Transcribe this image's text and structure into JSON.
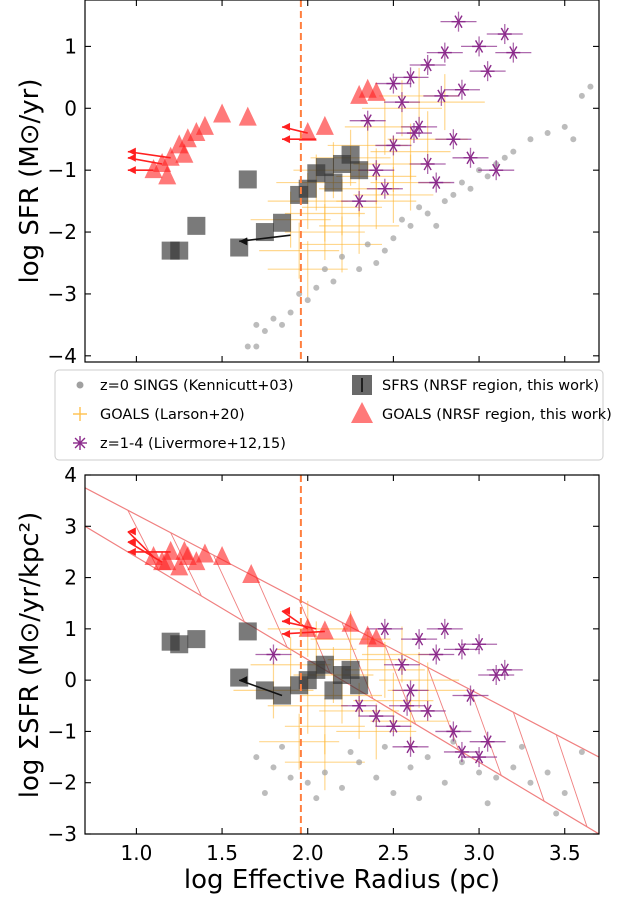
{
  "chart_data": [
    {
      "type": "scatter",
      "panel": "top",
      "xlabel": "",
      "ylabel": "log SFR (M⊙/yr)",
      "xlim": [
        0.7,
        3.7
      ],
      "ylim": [
        -4.1,
        1.75
      ],
      "yticks": [
        "−4",
        "−3",
        "−2",
        "−1",
        "0",
        "1"
      ],
      "ytick_values": [
        -4,
        -3,
        -2,
        -1,
        0,
        1
      ],
      "vline": 1.96,
      "series": {
        "sings": [
          [
            1.7,
            -3.5
          ],
          [
            1.75,
            -3.6
          ],
          [
            1.8,
            -3.4
          ],
          [
            1.85,
            -3.5
          ],
          [
            1.9,
            -3.3
          ],
          [
            1.95,
            -3.0
          ],
          [
            2.0,
            -3.1
          ],
          [
            2.05,
            -2.9
          ],
          [
            2.1,
            -2.6
          ],
          [
            2.15,
            -2.8
          ],
          [
            2.2,
            -2.4
          ],
          [
            2.3,
            -2.6
          ],
          [
            2.35,
            -2.2
          ],
          [
            2.4,
            -2.5
          ],
          [
            2.5,
            -2.1
          ],
          [
            2.6,
            -1.9
          ],
          [
            2.7,
            -1.7
          ],
          [
            2.8,
            -1.5
          ],
          [
            2.9,
            -1.2
          ],
          [
            3.0,
            -1.0
          ],
          [
            3.1,
            -0.9
          ],
          [
            3.2,
            -0.7
          ],
          [
            3.3,
            -0.5
          ],
          [
            3.4,
            -0.4
          ],
          [
            3.5,
            -0.3
          ],
          [
            3.55,
            -0.5
          ],
          [
            3.6,
            0.2
          ],
          [
            3.65,
            0.35
          ],
          [
            1.65,
            -3.85
          ],
          [
            1.7,
            -3.85
          ],
          [
            2.45,
            -2.3
          ],
          [
            2.55,
            -1.8
          ],
          [
            2.65,
            -1.6
          ],
          [
            2.75,
            -1.9
          ],
          [
            2.85,
            -1.4
          ],
          [
            2.95,
            -1.3
          ],
          [
            3.05,
            -1.1
          ],
          [
            3.15,
            -0.8
          ]
        ],
        "goals_larson": [
          [
            1.9,
            -1.8
          ],
          [
            2.0,
            -1.5
          ],
          [
            2.05,
            -1.2
          ],
          [
            2.1,
            -2.0
          ],
          [
            2.15,
            -1.0
          ],
          [
            2.2,
            -1.6
          ],
          [
            2.25,
            -0.8
          ],
          [
            2.3,
            -1.3
          ],
          [
            2.35,
            -0.6
          ],
          [
            2.4,
            -1.1
          ],
          [
            2.45,
            -0.3
          ],
          [
            2.5,
            -0.9
          ],
          [
            2.55,
            0.0
          ],
          [
            2.6,
            -0.7
          ],
          [
            2.65,
            0.2
          ],
          [
            1.95,
            -2.3
          ],
          [
            2.0,
            -2.6
          ],
          [
            2.1,
            -1.7
          ],
          [
            2.2,
            -2.2
          ],
          [
            2.3,
            -1.9
          ],
          [
            2.4,
            -1.5
          ],
          [
            2.5,
            -1.4
          ],
          [
            2.6,
            -1.2
          ],
          [
            2.7,
            -0.5
          ],
          [
            2.8,
            0.1
          ]
        ],
        "livermore": [
          [
            2.3,
            -1.5
          ],
          [
            2.4,
            -1.0
          ],
          [
            2.5,
            -0.6
          ],
          [
            2.55,
            0.1
          ],
          [
            2.6,
            0.5
          ],
          [
            2.65,
            -0.3
          ],
          [
            2.7,
            0.7
          ],
          [
            2.75,
            -1.2
          ],
          [
            2.8,
            0.9
          ],
          [
            2.85,
            -0.5
          ],
          [
            2.9,
            0.3
          ],
          [
            2.95,
            -0.8
          ],
          [
            3.0,
            1.0
          ],
          [
            3.05,
            0.6
          ],
          [
            3.1,
            -1.0
          ],
          [
            3.15,
            1.2
          ],
          [
            2.45,
            -1.3
          ],
          [
            2.35,
            -0.2
          ],
          [
            2.5,
            0.4
          ],
          [
            2.7,
            -0.9
          ],
          [
            2.88,
            1.4
          ],
          [
            3.2,
            0.9
          ],
          [
            2.62,
            -0.4
          ],
          [
            2.78,
            0.2
          ]
        ],
        "sfrs": [
          [
            1.2,
            -2.3
          ],
          [
            1.25,
            -2.3
          ],
          [
            1.35,
            -1.9
          ],
          [
            1.6,
            -2.25
          ],
          [
            1.65,
            -1.15
          ],
          [
            1.75,
            -2.0
          ],
          [
            1.85,
            -1.85
          ],
          [
            2.0,
            -1.3
          ],
          [
            2.05,
            -1.05
          ],
          [
            2.1,
            -0.95
          ],
          [
            2.15,
            -1.2
          ],
          [
            2.2,
            -0.9
          ],
          [
            2.25,
            -0.75
          ],
          [
            2.3,
            -1.0
          ],
          [
            1.95,
            -1.4
          ]
        ],
        "sfrs_arrows": [
          [
            1.9,
            -2.05,
            1.6,
            -2.15
          ]
        ],
        "goals_this": [
          [
            1.1,
            -1.0
          ],
          [
            1.15,
            -0.9
          ],
          [
            1.2,
            -0.8
          ],
          [
            1.25,
            -0.6
          ],
          [
            1.3,
            -0.5
          ],
          [
            1.35,
            -0.4
          ],
          [
            1.4,
            -0.3
          ],
          [
            1.5,
            -0.1
          ],
          [
            1.65,
            -0.15
          ],
          [
            2.0,
            -0.4
          ],
          [
            2.1,
            -0.3
          ],
          [
            2.3,
            0.2
          ],
          [
            2.35,
            0.3
          ],
          [
            2.4,
            0.25
          ],
          [
            1.18,
            -1.1
          ],
          [
            1.28,
            -0.75
          ]
        ],
        "goals_this_arrows": [
          [
            1.1,
            -1.0,
            0.95,
            -1.0
          ],
          [
            1.15,
            -0.9,
            0.95,
            -0.8
          ],
          [
            1.2,
            -0.8,
            0.95,
            -0.7
          ],
          [
            2.0,
            -0.4,
            1.85,
            -0.3
          ],
          [
            2.05,
            -0.5,
            1.85,
            -0.5
          ]
        ]
      }
    },
    {
      "type": "scatter",
      "panel": "bottom",
      "xlabel": "log Effective Radius (pc)",
      "ylabel": "log ΣSFR (M⊙/yr/kpc²)",
      "xlim": [
        0.7,
        3.7
      ],
      "ylim": [
        -3,
        4
      ],
      "xticks": [
        "1.0",
        "1.5",
        "2.0",
        "2.5",
        "3.0",
        "3.5"
      ],
      "xtick_values": [
        1.0,
        1.5,
        2.0,
        2.5,
        3.0,
        3.5
      ],
      "yticks": [
        "−3",
        "−2",
        "−1",
        "0",
        "1",
        "2",
        "3",
        "4"
      ],
      "ytick_values": [
        -3,
        -2,
        -1,
        0,
        1,
        2,
        3,
        4
      ],
      "vline": 1.96,
      "hatched_band": [
        [
          0.7,
          3.75
        ],
        [
          3.7,
          -1.5
        ],
        [
          3.7,
          -3.0
        ],
        [
          0.7,
          3.0
        ]
      ],
      "series": {
        "sings": [
          [
            1.7,
            -1.5
          ],
          [
            1.8,
            -1.7
          ],
          [
            1.9,
            -1.9
          ],
          [
            2.0,
            -2.0
          ],
          [
            2.1,
            -1.8
          ],
          [
            2.2,
            -2.1
          ],
          [
            2.3,
            -1.6
          ],
          [
            2.4,
            -1.9
          ],
          [
            2.5,
            -2.2
          ],
          [
            2.6,
            -1.7
          ],
          [
            2.7,
            -1.5
          ],
          [
            2.8,
            -2.0
          ],
          [
            2.9,
            -1.6
          ],
          [
            3.0,
            -1.8
          ],
          [
            3.1,
            -1.9
          ],
          [
            3.2,
            -1.7
          ],
          [
            3.3,
            -2.0
          ],
          [
            3.4,
            -1.8
          ],
          [
            3.5,
            -2.2
          ],
          [
            3.6,
            -1.4
          ],
          [
            1.75,
            -2.2
          ],
          [
            1.85,
            -1.3
          ],
          [
            2.05,
            -2.3
          ],
          [
            2.25,
            -1.4
          ],
          [
            2.45,
            -1.3
          ],
          [
            2.65,
            -2.3
          ],
          [
            2.85,
            -1.2
          ],
          [
            3.05,
            -2.4
          ],
          [
            3.25,
            -1.3
          ],
          [
            3.45,
            -2.6
          ]
        ],
        "goals_larson": [
          [
            1.8,
            -0.2
          ],
          [
            1.9,
            0.3
          ],
          [
            2.0,
            -0.5
          ],
          [
            2.05,
            0.6
          ],
          [
            2.1,
            -0.9
          ],
          [
            2.15,
            0.1
          ],
          [
            2.2,
            -0.3
          ],
          [
            2.25,
            0.8
          ],
          [
            2.3,
            -0.6
          ],
          [
            2.35,
            0.4
          ],
          [
            2.4,
            -1.0
          ],
          [
            2.45,
            0.2
          ],
          [
            2.5,
            -0.4
          ],
          [
            2.55,
            0.5
          ],
          [
            2.6,
            -0.8
          ],
          [
            2.65,
            0.0
          ],
          [
            2.7,
            -0.2
          ],
          [
            1.95,
            -1.2
          ],
          [
            2.0,
            1.0
          ],
          [
            2.1,
            -1.6
          ]
        ],
        "livermore": [
          [
            2.3,
            -0.5
          ],
          [
            2.4,
            -0.7
          ],
          [
            2.5,
            -0.9
          ],
          [
            2.55,
            0.3
          ],
          [
            2.6,
            -0.2
          ],
          [
            2.65,
            0.8
          ],
          [
            2.7,
            -0.6
          ],
          [
            2.75,
            0.5
          ],
          [
            2.8,
            1.0
          ],
          [
            2.85,
            -1.0
          ],
          [
            2.9,
            0.6
          ],
          [
            2.95,
            -0.3
          ],
          [
            3.0,
            0.7
          ],
          [
            3.05,
            -1.2
          ],
          [
            3.1,
            0.1
          ],
          [
            3.15,
            0.2
          ],
          [
            2.9,
            -1.4
          ],
          [
            2.45,
            1.0
          ],
          [
            2.58,
            -0.5
          ],
          [
            1.8,
            0.5
          ],
          [
            2.6,
            -1.3
          ],
          [
            3.0,
            -1.5
          ]
        ],
        "sfrs": [
          [
            1.2,
            0.75
          ],
          [
            1.25,
            0.7
          ],
          [
            1.35,
            0.8
          ],
          [
            1.65,
            0.95
          ],
          [
            1.6,
            0.05
          ],
          [
            1.75,
            -0.2
          ],
          [
            1.85,
            -0.3
          ],
          [
            2.0,
            0.0
          ],
          [
            2.05,
            0.2
          ],
          [
            2.1,
            0.3
          ],
          [
            2.15,
            -0.2
          ],
          [
            2.2,
            0.1
          ],
          [
            2.25,
            0.2
          ],
          [
            2.3,
            -0.1
          ],
          [
            1.95,
            -0.1
          ]
        ],
        "sfrs_arrows": [
          [
            1.85,
            -0.3,
            1.6,
            0.0
          ]
        ],
        "goals_this": [
          [
            1.1,
            2.4
          ],
          [
            1.15,
            2.3
          ],
          [
            1.2,
            2.5
          ],
          [
            1.25,
            2.2
          ],
          [
            1.3,
            2.4
          ],
          [
            1.35,
            2.3
          ],
          [
            1.4,
            2.45
          ],
          [
            1.5,
            2.4
          ],
          [
            1.67,
            2.05
          ],
          [
            2.0,
            1.0
          ],
          [
            2.1,
            0.95
          ],
          [
            2.25,
            1.1
          ],
          [
            2.35,
            0.85
          ],
          [
            2.4,
            0.8
          ],
          [
            1.18,
            2.3
          ],
          [
            1.28,
            2.5
          ]
        ],
        "goals_this_arrows": [
          [
            1.1,
            2.4,
            0.95,
            2.9
          ],
          [
            1.15,
            2.3,
            0.95,
            2.7
          ],
          [
            1.2,
            2.5,
            0.95,
            2.5
          ],
          [
            2.0,
            1.0,
            1.85,
            1.35
          ],
          [
            2.05,
            1.0,
            1.85,
            1.15
          ],
          [
            2.1,
            0.95,
            1.85,
            0.9
          ]
        ]
      }
    }
  ],
  "legend": {
    "items": [
      {
        "label": "z=0 SINGS (Kennicutt+03)",
        "marker": "dot",
        "color": "#a0a0a0"
      },
      {
        "label": "SFRS (NRSF region, this work)",
        "marker": "square",
        "color": "#444444"
      },
      {
        "label": "GOALS (Larson+20)",
        "marker": "plus",
        "color": "#ffc04d"
      },
      {
        "label": "GOALS (NRSF region, this work)",
        "marker": "triangle",
        "color": "#ff4040"
      },
      {
        "label": "z=1-4 (Livermore+12,15)",
        "marker": "star",
        "color": "#8b2a8b"
      }
    ]
  },
  "colors": {
    "sings": "#a0a0a0",
    "goals_larson": "#ffb732",
    "livermore": "#8b2a8b",
    "sfrs": "#333333",
    "goals_this": "#ff2020",
    "vline": "#ff7f3f",
    "band": "#f08080"
  }
}
